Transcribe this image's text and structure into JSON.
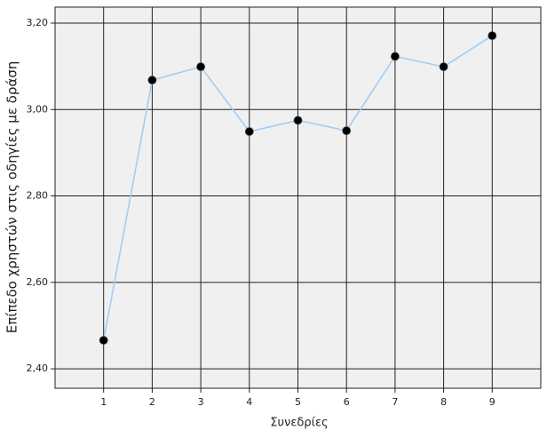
{
  "chart_data": {
    "type": "line",
    "xlabel": "Συνεδρίες",
    "ylabel": "Επίπεδο χρηστών στις οδηγίες με δράση",
    "x": [
      1,
      2,
      3,
      4,
      5,
      6,
      7,
      8,
      9
    ],
    "series": [
      {
        "color": "#a3cdf5",
        "marker_color": "#000000",
        "values": [
          2.466,
          3.068,
          3.099,
          2.949,
          2.975,
          2.951,
          3.123,
          3.099,
          3.171
        ]
      }
    ],
    "xlim": [
      0,
      10
    ],
    "xticks": [
      1,
      2,
      3,
      4,
      5,
      6,
      7,
      8,
      9
    ],
    "ylim": [
      2.355,
      3.237
    ],
    "yticks": [
      {
        "value": 2.4,
        "label": "2,40"
      },
      {
        "value": 2.6,
        "label": "2,60"
      },
      {
        "value": 2.8,
        "label": "2,80"
      },
      {
        "value": 3.0,
        "label": "3,00"
      },
      {
        "value": 3.2,
        "label": "3,20"
      }
    ],
    "grid": true
  }
}
